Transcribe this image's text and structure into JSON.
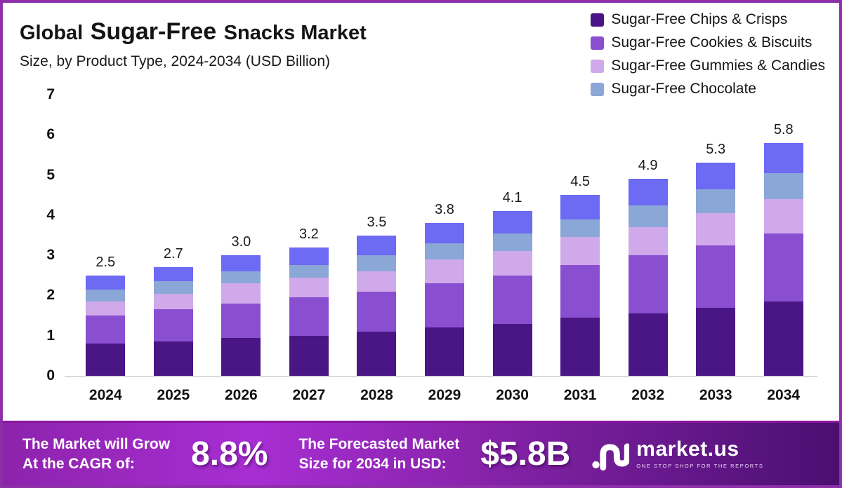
{
  "header": {
    "title_part1": "Global",
    "title_part2": "Sugar-Free",
    "title_part3": "Snacks Market",
    "subtitle": "Size, by Product Type, 2024-2034 (USD Billion)"
  },
  "legend": {
    "position": "top-right",
    "items": [
      {
        "label": "Sugar-Free Chips & Crisps",
        "color": "#4a1585"
      },
      {
        "label": "Sugar-Free Cookies & Biscuits",
        "color": "#8a4fd0"
      },
      {
        "label": "Sugar-Free Gummies & Candies",
        "color": "#d0a9ea"
      },
      {
        "label": "Sugar-Free Chocolate",
        "color": "#8ba7d8"
      }
    ]
  },
  "chart_data": {
    "type": "bar",
    "stacked": true,
    "title": "Global Sugar-Free Snacks Market Size, by Product Type, 2024-2034 (USD Billion)",
    "unit": "USD Billion",
    "grid": false,
    "legend_position": "top-right",
    "categories": [
      "2024",
      "2025",
      "2026",
      "2027",
      "2028",
      "2029",
      "2030",
      "2031",
      "2032",
      "2033",
      "2034"
    ],
    "series": [
      {
        "name": "Sugar-Free Chips & Crisps",
        "color": "#4a1585",
        "values": [
          0.8,
          0.85,
          0.95,
          1.0,
          1.1,
          1.2,
          1.3,
          1.45,
          1.55,
          1.7,
          1.85
        ]
      },
      {
        "name": "Sugar-Free Cookies & Biscuits",
        "color": "#8a4fd0",
        "values": [
          0.7,
          0.8,
          0.85,
          0.95,
          1.0,
          1.1,
          1.2,
          1.3,
          1.45,
          1.55,
          1.7
        ]
      },
      {
        "name": "Sugar-Free Gummies & Candies",
        "color": "#d0a9ea",
        "values": [
          0.35,
          0.4,
          0.5,
          0.5,
          0.5,
          0.6,
          0.6,
          0.7,
          0.7,
          0.8,
          0.85
        ]
      },
      {
        "name": "Sugar-Free Chocolate",
        "color": "#8ba7d8",
        "values": [
          0.3,
          0.3,
          0.3,
          0.3,
          0.4,
          0.4,
          0.45,
          0.45,
          0.55,
          0.6,
          0.65
        ]
      },
      {
        "name": "",
        "color": "#6d6af3",
        "values": [
          0.35,
          0.35,
          0.4,
          0.45,
          0.5,
          0.5,
          0.55,
          0.6,
          0.65,
          0.65,
          0.75
        ]
      }
    ],
    "totals_labels": [
      "2.5",
      "2.7",
      "3.0",
      "3.2",
      "3.5",
      "3.8",
      "4.1",
      "4.5",
      "4.9",
      "5.3",
      "5.8"
    ],
    "ylim": [
      0,
      7
    ],
    "yticks": [
      "0",
      "1",
      "2",
      "3",
      "4",
      "5",
      "6",
      "7"
    ]
  },
  "footer": {
    "cagr_line1": "The Market will Grow",
    "cagr_line2": "At the CAGR of:",
    "cagr_value": "8.8%",
    "forecast_line1": "The Forecasted Market",
    "forecast_line2": "Size for 2034 in USD:",
    "forecast_value": "$5.8B",
    "logo_text": "market.us",
    "logo_tagline": "ONE STOP SHOP FOR THE REPORTS"
  }
}
